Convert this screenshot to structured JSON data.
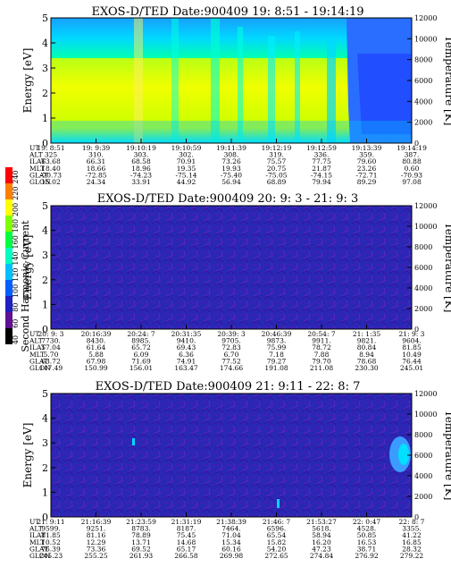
{
  "colorbar": {
    "label": "Second Harmonic Current",
    "ticks": [
      "40",
      "60",
      "80",
      "100",
      "120",
      "140",
      "160",
      "180",
      "200",
      "220",
      "240"
    ]
  },
  "chart_data": [
    {
      "type": "heatmap",
      "title": "EXOS-D/TED   Date:900409  19: 8:51 - 19:14:19",
      "ylabel": "Energy [eV]",
      "y2label": "Temperature [K]",
      "ylim": [
        0,
        5
      ],
      "yticks": [
        "0",
        "1",
        "2",
        "3",
        "4",
        "5"
      ],
      "y2ticks": [
        "0",
        "2000",
        "4000",
        "6000",
        "8000",
        "10000",
        "12000"
      ],
      "rows": [
        {
          "label": "UT",
          "values": [
            "19: 8:51",
            "19: 9:39",
            "19:10:19",
            "19:10:59",
            "19:11:39",
            "19:12:19",
            "19:12:59",
            "19:13:39",
            "19:14:19"
          ]
        },
        {
          "label": "ALT",
          "values": [
            "325",
            "310.",
            "303.",
            "302.",
            "308.",
            "319.",
            "336.",
            "359.",
            "387."
          ]
        },
        {
          "label": "ILAT",
          "values": [
            "63.68",
            "66.31",
            "68.58",
            "70.91",
            "73.26",
            "75.57",
            "77.75",
            "79.60",
            "80.88"
          ]
        },
        {
          "label": "MLT",
          "values": [
            "18.40",
            "18.66",
            "18.96",
            "19.35",
            "19.93",
            "20.75",
            "21.87",
            "23.26",
            "0.60"
          ]
        },
        {
          "label": "GLAT",
          "values": [
            "-70.73",
            "-72.85",
            "-74.23",
            "-75.14",
            "-75.40",
            "-75.05",
            "-74.15",
            "-72.71",
            "-70.93"
          ]
        },
        {
          "label": "GLON",
          "values": [
            "15.02",
            "24.34",
            "33.91",
            "44.92",
            "56.94",
            "68.89",
            "79.94",
            "89.29",
            "97.08"
          ]
        }
      ]
    },
    {
      "type": "heatmap",
      "title": "EXOS-D/TED   Date:900409  20: 9: 3 - 21: 9: 3",
      "ylabel": "Energy [eV]",
      "y2label": "Temperature [K]",
      "ylim": [
        0,
        5
      ],
      "yticks": [
        "0",
        "1",
        "2",
        "3",
        "4",
        "5"
      ],
      "y2ticks": [
        "0",
        "2000",
        "4000",
        "6000",
        "8000",
        "10000",
        "12000"
      ],
      "rows": [
        {
          "label": "UT",
          "values": [
            "20: 9: 3",
            "20:16:39",
            "20:24: 7",
            "20:31:35",
            "20:39: 3",
            "20:46:39",
            "20:54: 7",
            "21: 1:35",
            "21: 9: 3"
          ]
        },
        {
          "label": "ALT",
          "values": [
            "7730.",
            "8430.",
            "8985.",
            "9410.",
            "9705.",
            "9873.",
            "9911.",
            "9821.",
            "9604."
          ]
        },
        {
          "label": "ILAT",
          "values": [
            "57.04",
            "61.64",
            "65.72",
            "69.43",
            "72.83",
            "75.99",
            "78.72",
            "80.84",
            "81.85"
          ]
        },
        {
          "label": "MLT",
          "values": [
            "5.70",
            "5.88",
            "6.09",
            "6.36",
            "6.70",
            "7.18",
            "7.88",
            "8.94",
            "10.49"
          ]
        },
        {
          "label": "GLAT",
          "values": [
            "63.72",
            "67.98",
            "71.69",
            "74.91",
            "77.52",
            "79.27",
            "79.70",
            "78.68",
            "76.44"
          ]
        },
        {
          "label": "GLON",
          "values": [
            "147.49",
            "150.99",
            "156.01",
            "163.47",
            "174.66",
            "191.08",
            "211.08",
            "230.30",
            "245.01"
          ]
        }
      ]
    },
    {
      "type": "heatmap",
      "title": "EXOS-D/TED   Date:900409  21: 9:11 - 22: 8: 7",
      "ylabel": "Energy [eV]",
      "y2label": "Temperature [K]",
      "ylim": [
        0,
        5
      ],
      "yticks": [
        "0",
        "1",
        "2",
        "3",
        "4",
        "5"
      ],
      "y2ticks": [
        "0",
        "2000",
        "4000",
        "6000",
        "8000",
        "10000",
        "12000"
      ],
      "rows": [
        {
          "label": "UT",
          "values": [
            "21: 9:11",
            "21:16:39",
            "21:23:59",
            "21:31:19",
            "21:38:39",
            "21:46: 7",
            "21:53:27",
            "22: 0:47",
            "22: 8: 7"
          ]
        },
        {
          "label": "ALT",
          "values": [
            "9599.",
            "9251.",
            "8783.",
            "8187.",
            "7464.",
            "6596.",
            "5618.",
            "4528.",
            "3355."
          ]
        },
        {
          "label": "ILAT",
          "values": [
            "81.85",
            "81.16",
            "78.89",
            "75.45",
            "71.04",
            "65.54",
            "58.94",
            "50.85",
            "41.22"
          ]
        },
        {
          "label": "MLT",
          "values": [
            "10.52",
            "12.29",
            "13.71",
            "14.68",
            "15.34",
            "15.82",
            "16.20",
            "16.53",
            "16.85"
          ]
        },
        {
          "label": "GLAT",
          "values": [
            "76.39",
            "73.36",
            "69.52",
            "65.17",
            "60.16",
            "54.20",
            "47.23",
            "38.71",
            "28.32"
          ]
        },
        {
          "label": "GLON",
          "values": [
            "245.23",
            "255.25",
            "261.93",
            "266.58",
            "269.98",
            "272.65",
            "274.84",
            "276.92",
            "279.22"
          ]
        }
      ]
    }
  ]
}
